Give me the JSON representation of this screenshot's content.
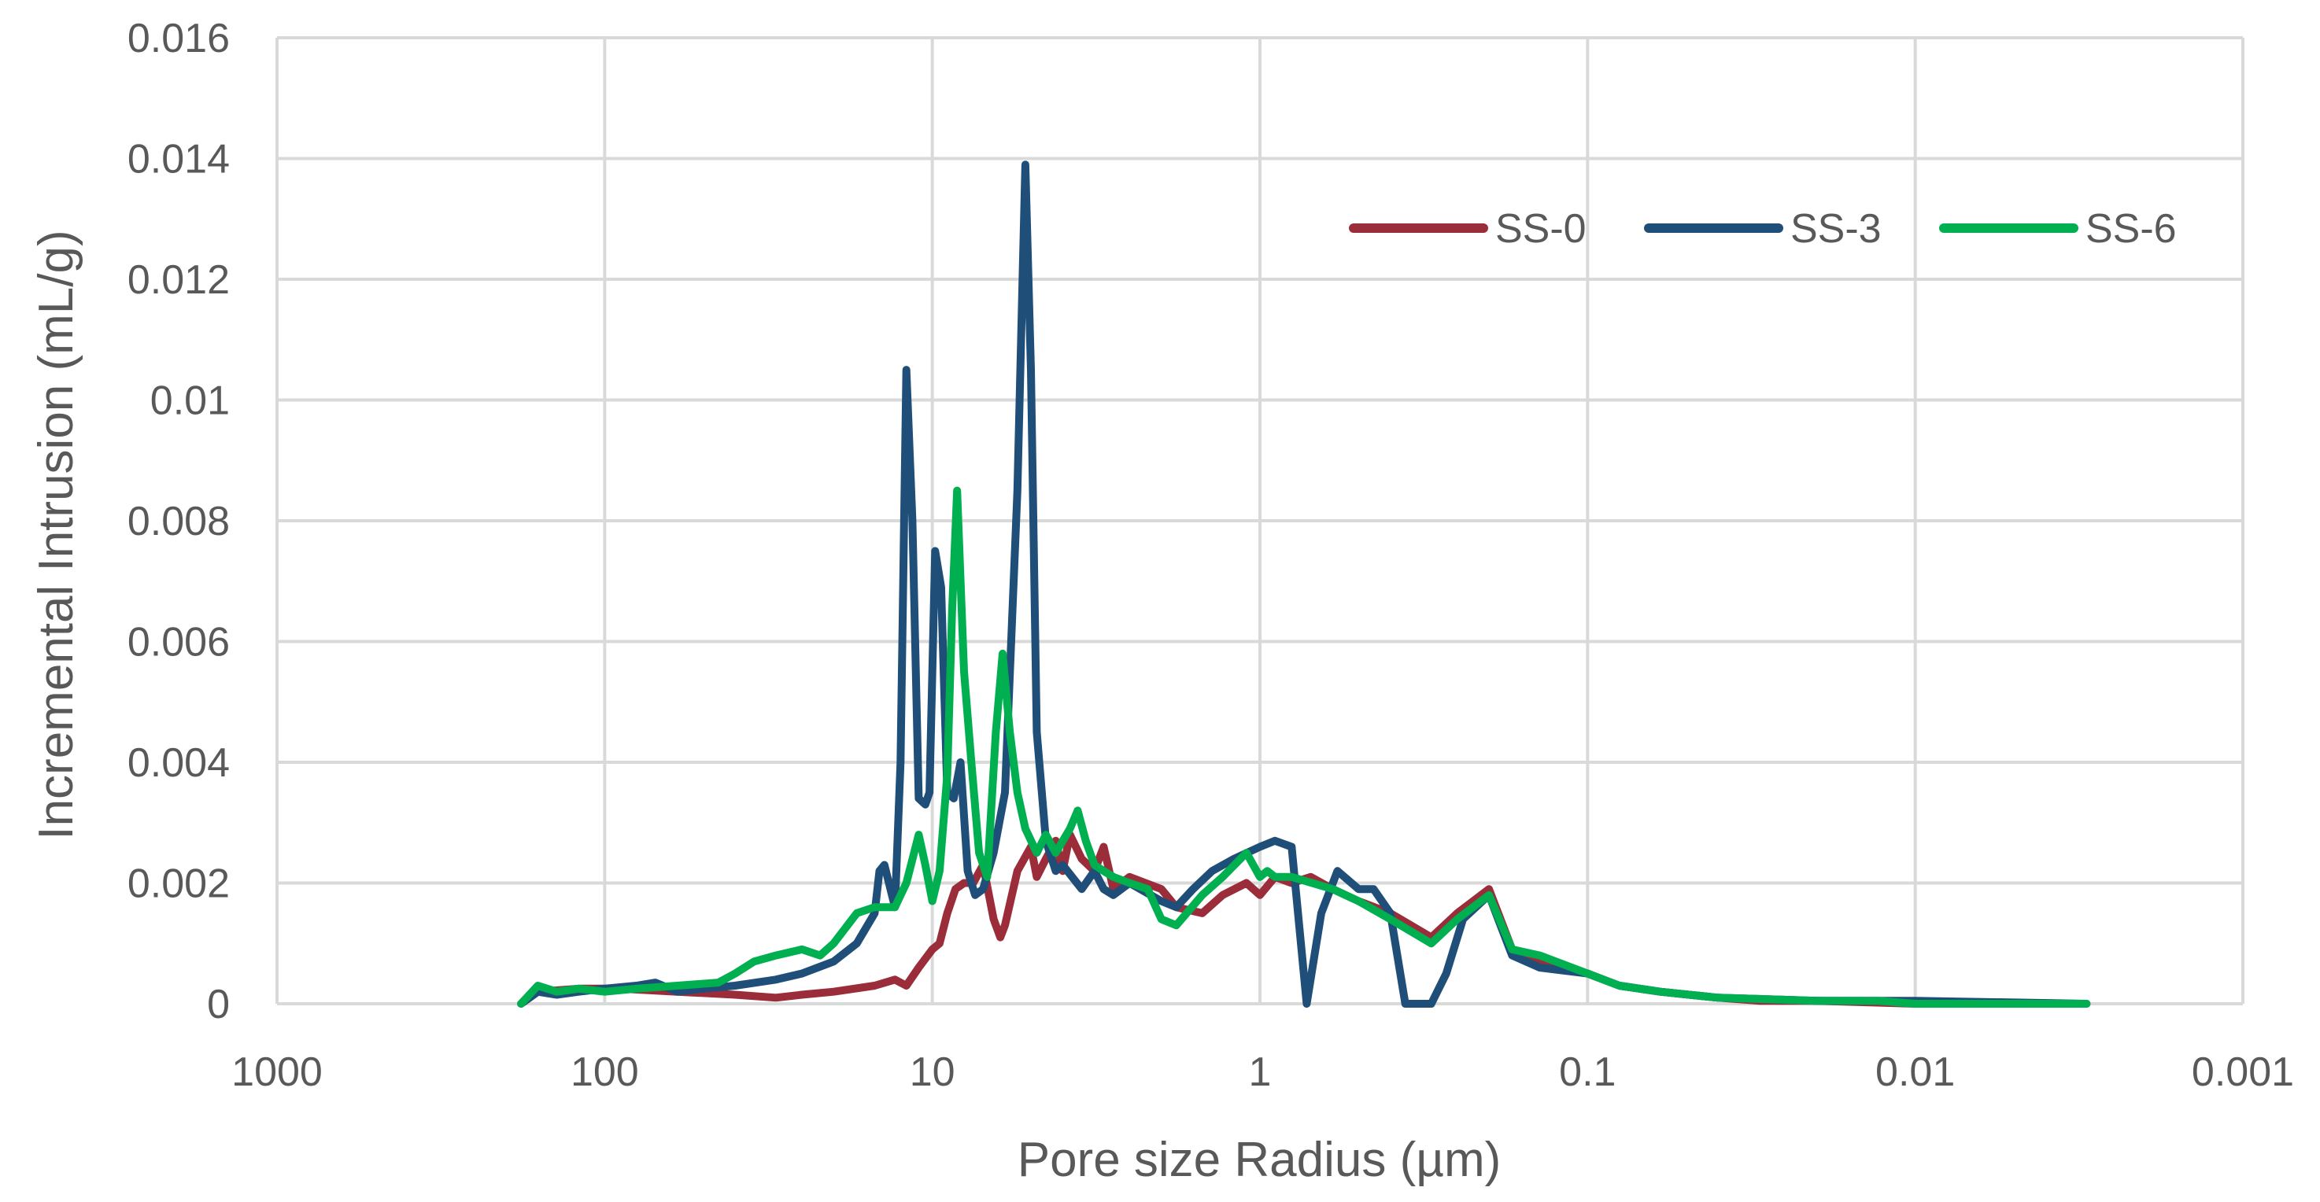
{
  "chart_data": {
    "type": "line",
    "title": "",
    "xlabel": "Pore size Radius (µm)",
    "ylabel": "Incremental Intrusion (mL/g)",
    "x_scale": "log",
    "x_reversed": true,
    "xlim": [
      1000,
      0.001
    ],
    "ylim": [
      0,
      0.016
    ],
    "x_ticks": [
      1000,
      100,
      10,
      1,
      0.1,
      0.01,
      0.001
    ],
    "x_tick_labels": [
      "1000",
      "100",
      "10",
      "1",
      "0.1",
      "0.01",
      "0.001"
    ],
    "y_ticks": [
      0,
      0.002,
      0.004,
      0.006,
      0.008,
      0.01,
      0.012,
      0.014,
      0.016
    ],
    "y_tick_labels": [
      "0",
      "0.002",
      "0.004",
      "0.006",
      "0.008",
      "0.01",
      "0.012",
      "0.014",
      "0.016"
    ],
    "grid": "both",
    "legend_position": "top-right",
    "series": [
      {
        "name": "SS-0",
        "color": "#9b2d3a",
        "points": [
          [
            180,
            0
          ],
          [
            160,
            0.0002
          ],
          [
            120,
            0.00025
          ],
          [
            90,
            0.00025
          ],
          [
            60,
            0.0002
          ],
          [
            40,
            0.00015
          ],
          [
            30,
            0.0001
          ],
          [
            25,
            0.00015
          ],
          [
            20,
            0.0002
          ],
          [
            15,
            0.0003
          ],
          [
            13,
            0.0004
          ],
          [
            12,
            0.0003
          ],
          [
            11,
            0.0006
          ],
          [
            10,
            0.0009
          ],
          [
            9.5,
            0.001
          ],
          [
            9,
            0.0015
          ],
          [
            8.5,
            0.0019
          ],
          [
            8,
            0.002
          ],
          [
            7.5,
            0.002
          ],
          [
            7,
            0.0023
          ],
          [
            6.5,
            0.0014
          ],
          [
            6.2,
            0.0011
          ],
          [
            6,
            0.0013
          ],
          [
            5.5,
            0.0022
          ],
          [
            5,
            0.0026
          ],
          [
            4.8,
            0.0021
          ],
          [
            4.5,
            0.0024
          ],
          [
            4.2,
            0.0027
          ],
          [
            4,
            0.0022
          ],
          [
            3.8,
            0.0028
          ],
          [
            3.5,
            0.0024
          ],
          [
            3.2,
            0.0022
          ],
          [
            3,
            0.0026
          ],
          [
            2.8,
            0.0019
          ],
          [
            2.5,
            0.0021
          ],
          [
            2,
            0.0019
          ],
          [
            1.8,
            0.0016
          ],
          [
            1.5,
            0.0015
          ],
          [
            1.3,
            0.0018
          ],
          [
            1.1,
            0.002
          ],
          [
            1,
            0.0018
          ],
          [
            0.9,
            0.0021
          ],
          [
            0.8,
            0.002
          ],
          [
            0.7,
            0.0021
          ],
          [
            0.6,
            0.0019
          ],
          [
            0.5,
            0.0017
          ],
          [
            0.4,
            0.0015
          ],
          [
            0.3,
            0.0011
          ],
          [
            0.25,
            0.0015
          ],
          [
            0.2,
            0.0019
          ],
          [
            0.17,
            0.0009
          ],
          [
            0.14,
            0.0007
          ],
          [
            0.1,
            0.0005
          ],
          [
            0.08,
            0.0003
          ],
          [
            0.06,
            0.0002
          ],
          [
            0.04,
            0.0001
          ],
          [
            0.03,
            5e-05
          ],
          [
            0.02,
            5e-05
          ],
          [
            0.01,
            0
          ]
        ]
      },
      {
        "name": "SS-3",
        "color": "#1f4e79",
        "points": [
          [
            180,
            0
          ],
          [
            160,
            0.0002
          ],
          [
            140,
            0.00015
          ],
          [
            120,
            0.0002
          ],
          [
            100,
            0.00025
          ],
          [
            80,
            0.0003
          ],
          [
            70,
            0.00035
          ],
          [
            60,
            0.0002
          ],
          [
            50,
            0.00025
          ],
          [
            40,
            0.0003
          ],
          [
            30,
            0.0004
          ],
          [
            25,
            0.0005
          ],
          [
            20,
            0.0007
          ],
          [
            17,
            0.001
          ],
          [
            15,
            0.0015
          ],
          [
            14.5,
            0.0022
          ],
          [
            14,
            0.0023
          ],
          [
            13,
            0.0016
          ],
          [
            12.5,
            0.004
          ],
          [
            12,
            0.0105
          ],
          [
            11.5,
            0.008
          ],
          [
            11,
            0.0034
          ],
          [
            10.5,
            0.0033
          ],
          [
            10.2,
            0.0035
          ],
          [
            9.8,
            0.0075
          ],
          [
            9.4,
            0.0069
          ],
          [
            9,
            0.0035
          ],
          [
            8.6,
            0.0034
          ],
          [
            8.2,
            0.004
          ],
          [
            7.8,
            0.0022
          ],
          [
            7.4,
            0.0018
          ],
          [
            7,
            0.0019
          ],
          [
            6.5,
            0.0025
          ],
          [
            6,
            0.0035
          ],
          [
            5.5,
            0.0085
          ],
          [
            5.2,
            0.0139
          ],
          [
            5,
            0.0105
          ],
          [
            4.8,
            0.0045
          ],
          [
            4.5,
            0.0027
          ],
          [
            4.2,
            0.0022
          ],
          [
            4,
            0.0023
          ],
          [
            3.5,
            0.0019
          ],
          [
            3.2,
            0.0022
          ],
          [
            3,
            0.0019
          ],
          [
            2.8,
            0.0018
          ],
          [
            2.5,
            0.002
          ],
          [
            2,
            0.0017
          ],
          [
            1.8,
            0.0016
          ],
          [
            1.6,
            0.0019
          ],
          [
            1.4,
            0.0022
          ],
          [
            1.2,
            0.0024
          ],
          [
            1,
            0.0026
          ],
          [
            0.9,
            0.0027
          ],
          [
            0.8,
            0.0026
          ],
          [
            0.72,
            0
          ],
          [
            0.65,
            0.0015
          ],
          [
            0.58,
            0.0022
          ],
          [
            0.5,
            0.0019
          ],
          [
            0.45,
            0.0019
          ],
          [
            0.4,
            0.0015
          ],
          [
            0.36,
            0
          ],
          [
            0.3,
            0
          ],
          [
            0.27,
            0.0005
          ],
          [
            0.24,
            0.0014
          ],
          [
            0.2,
            0.0018
          ],
          [
            0.17,
            0.0008
          ],
          [
            0.14,
            0.0006
          ],
          [
            0.1,
            0.0005
          ],
          [
            0.08,
            0.0003
          ],
          [
            0.06,
            0.0002
          ],
          [
            0.04,
            0.0001
          ],
          [
            0.02,
            5e-05
          ],
          [
            0.01,
            5e-05
          ],
          [
            0.003,
            0
          ]
        ]
      },
      {
        "name": "SS-6",
        "color": "#00b050",
        "points": [
          [
            180,
            0
          ],
          [
            160,
            0.0003
          ],
          [
            140,
            0.0002
          ],
          [
            120,
            0.00025
          ],
          [
            100,
            0.0002
          ],
          [
            80,
            0.00025
          ],
          [
            60,
            0.0003
          ],
          [
            45,
            0.00035
          ],
          [
            40,
            0.0005
          ],
          [
            35,
            0.0007
          ],
          [
            30,
            0.0008
          ],
          [
            25,
            0.0009
          ],
          [
            22,
            0.0008
          ],
          [
            20,
            0.001
          ],
          [
            17,
            0.0015
          ],
          [
            15,
            0.0016
          ],
          [
            13,
            0.0016
          ],
          [
            12,
            0.002
          ],
          [
            11,
            0.0028
          ],
          [
            10.5,
            0.0023
          ],
          [
            10,
            0.0017
          ],
          [
            9.5,
            0.0022
          ],
          [
            9,
            0.0038
          ],
          [
            8.7,
            0.0065
          ],
          [
            8.4,
            0.0085
          ],
          [
            8,
            0.0055
          ],
          [
            7.6,
            0.004
          ],
          [
            7.2,
            0.0025
          ],
          [
            6.8,
            0.0021
          ],
          [
            6.4,
            0.0045
          ],
          [
            6.1,
            0.0058
          ],
          [
            5.8,
            0.0045
          ],
          [
            5.5,
            0.0035
          ],
          [
            5.2,
            0.0029
          ],
          [
            4.8,
            0.0025
          ],
          [
            4.5,
            0.0028
          ],
          [
            4.2,
            0.0025
          ],
          [
            3.8,
            0.0029
          ],
          [
            3.6,
            0.0032
          ],
          [
            3.4,
            0.0027
          ],
          [
            3.2,
            0.0023
          ],
          [
            3,
            0.0022
          ],
          [
            2.8,
            0.0021
          ],
          [
            2.5,
            0.002
          ],
          [
            2.2,
            0.0019
          ],
          [
            2,
            0.0014
          ],
          [
            1.8,
            0.0013
          ],
          [
            1.5,
            0.0018
          ],
          [
            1.3,
            0.0021
          ],
          [
            1.1,
            0.0025
          ],
          [
            1,
            0.0021
          ],
          [
            0.95,
            0.0022
          ],
          [
            0.9,
            0.0021
          ],
          [
            0.8,
            0.0021
          ],
          [
            0.6,
            0.0019
          ],
          [
            0.5,
            0.0017
          ],
          [
            0.4,
            0.0014
          ],
          [
            0.3,
            0.001
          ],
          [
            0.25,
            0.0014
          ],
          [
            0.2,
            0.0018
          ],
          [
            0.17,
            0.0009
          ],
          [
            0.14,
            0.0008
          ],
          [
            0.1,
            0.0005
          ],
          [
            0.08,
            0.0003
          ],
          [
            0.06,
            0.0002
          ],
          [
            0.04,
            0.0001
          ],
          [
            0.02,
            5e-05
          ],
          [
            0.013,
            5e-05
          ],
          [
            0.01,
            0
          ],
          [
            0.003,
            0
          ]
        ]
      }
    ]
  }
}
